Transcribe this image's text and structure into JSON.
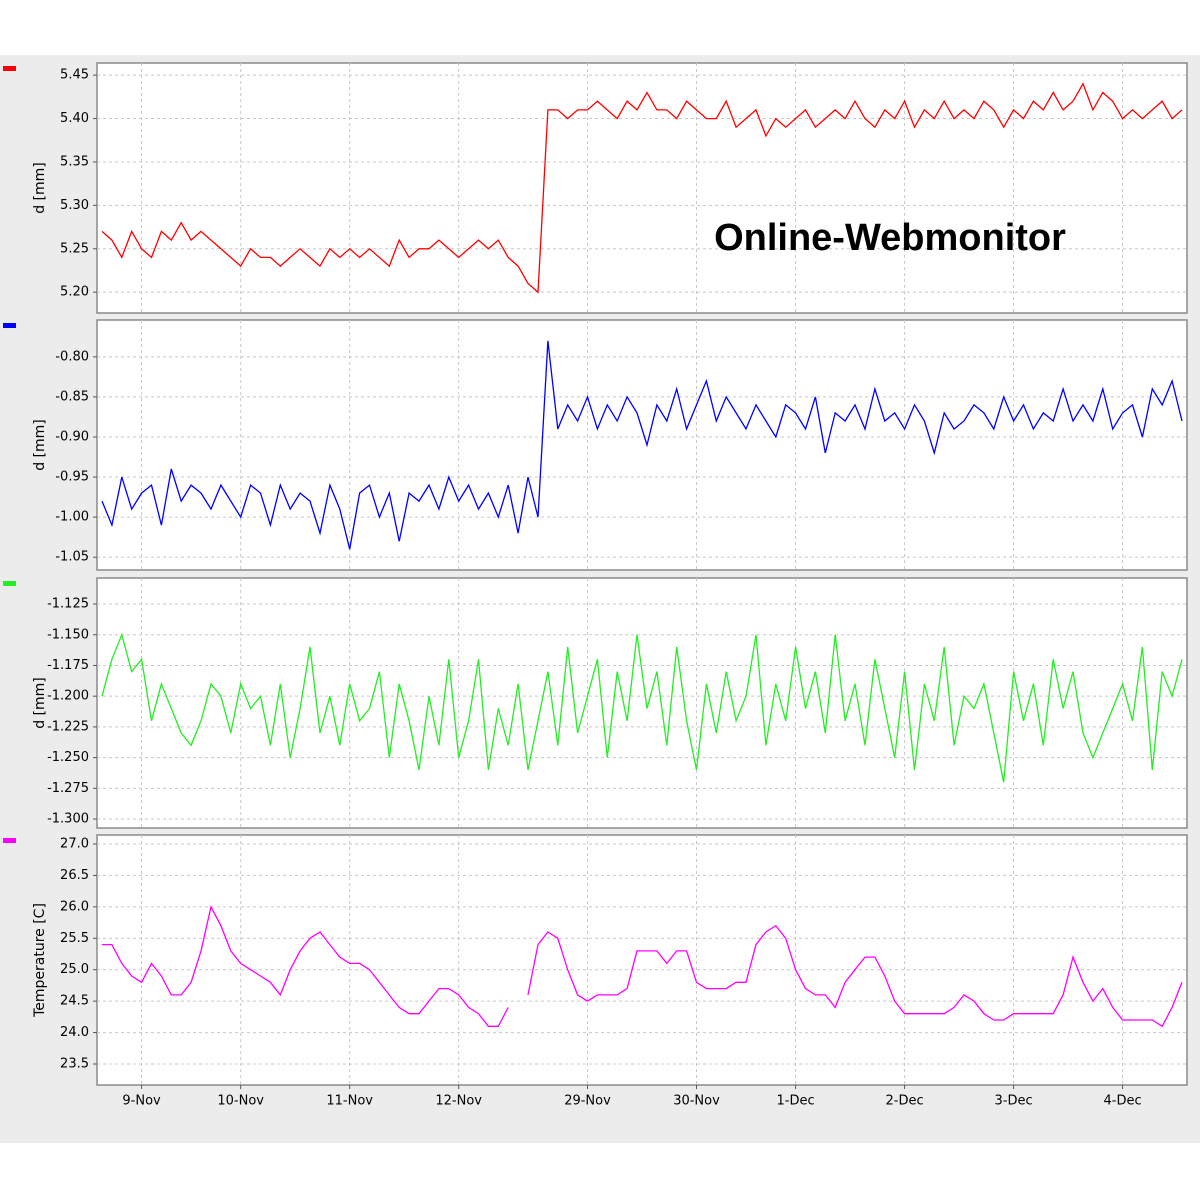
{
  "chart_data": [
    {
      "type": "line",
      "ylabel": "d [mm]",
      "annotation": "Online-Webmonitor",
      "color": "#ff0000",
      "grid": true,
      "ylim": [
        5.176,
        5.464
      ],
      "yticks": [
        {
          "value": 5.2,
          "label": "5.20"
        },
        5.25,
        {
          "value": 5.3,
          "label": "5.30"
        },
        5.35,
        {
          "value": 5.4,
          "label": "5.40"
        },
        5.45
      ],
      "values": [
        5.27,
        5.26,
        5.24,
        5.27,
        5.25,
        5.24,
        5.27,
        5.26,
        5.28,
        5.26,
        5.27,
        5.26,
        5.25,
        5.24,
        5.23,
        5.25,
        5.24,
        5.24,
        5.23,
        5.24,
        5.25,
        5.24,
        5.23,
        5.25,
        5.24,
        5.25,
        5.24,
        5.25,
        5.24,
        5.23,
        5.26,
        5.24,
        5.25,
        5.25,
        5.26,
        5.25,
        5.24,
        5.25,
        5.26,
        5.25,
        5.26,
        5.24,
        5.23,
        5.21,
        5.2,
        5.41,
        5.41,
        5.4,
        5.41,
        5.41,
        5.42,
        5.41,
        5.4,
        5.42,
        5.41,
        5.43,
        5.41,
        5.41,
        5.4,
        5.42,
        5.41,
        5.4,
        5.4,
        5.42,
        5.39,
        5.4,
        5.41,
        5.38,
        5.4,
        5.39,
        5.4,
        5.41,
        5.39,
        5.4,
        5.41,
        5.4,
        5.42,
        5.4,
        5.39,
        5.41,
        5.4,
        5.42,
        5.39,
        5.41,
        5.4,
        5.42,
        5.4,
        5.41,
        5.4,
        5.42,
        5.41,
        5.39,
        5.41,
        5.4,
        5.42,
        5.41,
        5.43,
        5.41,
        5.42,
        5.44,
        5.41,
        5.43,
        5.42,
        5.4,
        5.41,
        5.4,
        5.41,
        5.42,
        5.4,
        5.41
      ]
    },
    {
      "type": "line",
      "ylabel": "d [mm]",
      "color": "#0000ff",
      "grid": true,
      "ylim": [
        -1.066,
        -0.754
      ],
      "yticks": [
        {
          "value": -0.8,
          "label": "-0.80"
        },
        -0.85,
        {
          "value": -0.9,
          "label": "-0.90"
        },
        -0.95,
        {
          "value": -1,
          "label": "-1.00"
        },
        -1.05
      ],
      "values": [
        -0.98,
        -1.01,
        -0.95,
        -0.99,
        -0.97,
        -0.96,
        -1.01,
        -0.94,
        -0.98,
        -0.96,
        -0.97,
        -0.99,
        -0.96,
        -0.98,
        -1.0,
        -0.96,
        -0.97,
        -1.01,
        -0.96,
        -0.99,
        -0.97,
        -0.98,
        -1.02,
        -0.96,
        -0.99,
        -1.04,
        -0.97,
        -0.96,
        -1.0,
        -0.97,
        -1.03,
        -0.97,
        -0.98,
        -0.96,
        -0.99,
        -0.95,
        -0.98,
        -0.96,
        -0.99,
        -0.97,
        -1.0,
        -0.96,
        -1.02,
        -0.95,
        -1.0,
        -0.78,
        -0.89,
        -0.86,
        -0.88,
        -0.85,
        -0.89,
        -0.86,
        -0.88,
        -0.85,
        -0.87,
        -0.91,
        -0.86,
        -0.88,
        -0.84,
        -0.89,
        -0.86,
        -0.83,
        -0.88,
        -0.85,
        -0.87,
        -0.89,
        -0.86,
        -0.88,
        -0.9,
        -0.86,
        -0.87,
        -0.89,
        -0.85,
        -0.92,
        -0.87,
        -0.88,
        -0.86,
        -0.89,
        -0.84,
        -0.88,
        -0.87,
        -0.89,
        -0.86,
        -0.88,
        -0.92,
        -0.87,
        -0.89,
        -0.88,
        -0.86,
        -0.87,
        -0.89,
        -0.85,
        -0.88,
        -0.86,
        -0.89,
        -0.87,
        -0.88,
        -0.84,
        -0.88,
        -0.86,
        -0.88,
        -0.84,
        -0.89,
        -0.87,
        -0.86,
        -0.9,
        -0.84,
        -0.86,
        -0.83,
        -0.88
      ]
    },
    {
      "type": "line",
      "ylabel": "d [mm]",
      "color": "#22ee22",
      "grid": true,
      "ylim": [
        -1.3073,
        -1.1038
      ],
      "yticks": [
        -1.125,
        {
          "value": -1.15,
          "label": "-1.150"
        },
        -1.175,
        {
          "value": -1.2,
          "label": "-1.200"
        },
        -1.225,
        {
          "value": -1.25,
          "label": "-1.250"
        },
        -1.275,
        {
          "value": -1.3,
          "label": "-1.300"
        }
      ],
      "values": [
        -1.2,
        -1.17,
        -1.15,
        -1.18,
        -1.17,
        -1.22,
        -1.19,
        -1.21,
        -1.23,
        -1.24,
        -1.22,
        -1.19,
        -1.2,
        -1.23,
        -1.19,
        -1.21,
        -1.2,
        -1.24,
        -1.19,
        -1.25,
        -1.21,
        -1.16,
        -1.23,
        -1.2,
        -1.24,
        -1.19,
        -1.22,
        -1.21,
        -1.18,
        -1.25,
        -1.19,
        -1.22,
        -1.26,
        -1.2,
        -1.24,
        -1.17,
        -1.25,
        -1.22,
        -1.17,
        -1.26,
        -1.21,
        -1.24,
        -1.19,
        -1.26,
        -1.22,
        -1.18,
        -1.24,
        -1.16,
        -1.23,
        -1.2,
        -1.17,
        -1.25,
        -1.18,
        -1.22,
        -1.15,
        -1.21,
        -1.18,
        -1.24,
        -1.16,
        -1.22,
        -1.26,
        -1.19,
        -1.23,
        -1.18,
        -1.22,
        -1.2,
        -1.15,
        -1.24,
        -1.19,
        -1.22,
        -1.16,
        -1.21,
        -1.18,
        -1.23,
        -1.15,
        -1.22,
        -1.19,
        -1.24,
        -1.17,
        -1.21,
        -1.25,
        -1.18,
        -1.26,
        -1.19,
        -1.22,
        -1.16,
        -1.24,
        -1.2,
        -1.21,
        -1.19,
        -1.23,
        -1.27,
        -1.18,
        -1.22,
        -1.19,
        -1.24,
        -1.17,
        -1.21,
        -1.18,
        -1.23,
        -1.25,
        -1.23,
        -1.21,
        -1.19,
        -1.22,
        -1.16,
        -1.26,
        -1.18,
        -1.2,
        -1.17
      ]
    },
    {
      "type": "line",
      "ylabel": "Temperature [C]",
      "color": "#ff00ff",
      "grid": true,
      "ylim": [
        23.166,
        27.143
      ],
      "yticks": [
        23.5,
        {
          "value": 24,
          "label": "24.0"
        },
        24.5,
        {
          "value": 25,
          "label": "25.0"
        },
        25.5,
        {
          "value": 26,
          "label": "26.0"
        },
        26.5,
        {
          "value": 27,
          "label": "27.0"
        }
      ],
      "categories": [
        null,
        null,
        null,
        null,
        "9-Nov",
        null,
        null,
        null,
        null,
        null,
        null,
        null,
        null,
        null,
        "10-Nov",
        null,
        null,
        null,
        null,
        null,
        null,
        null,
        null,
        null,
        null,
        "11-Nov",
        null,
        null,
        null,
        null,
        null,
        null,
        null,
        null,
        null,
        null,
        "12-Nov",
        null,
        null,
        null,
        null,
        null,
        null,
        null,
        null,
        null,
        null,
        null,
        null,
        "29-Nov",
        null,
        null,
        null,
        null,
        null,
        null,
        null,
        null,
        null,
        null,
        "30-Nov",
        null,
        null,
        null,
        null,
        null,
        null,
        null,
        null,
        null,
        "1-Dec",
        null,
        null,
        null,
        null,
        null,
        null,
        null,
        null,
        null,
        null,
        "2-Dec",
        null,
        null,
        null,
        null,
        null,
        null,
        null,
        null,
        null,
        null,
        "3-Dec",
        null,
        null,
        null,
        null,
        null,
        null,
        null,
        null,
        null,
        null,
        "4-Dec",
        null,
        null,
        null,
        null,
        null,
        null
      ],
      "values": [
        25.4,
        25.4,
        25.1,
        24.9,
        24.8,
        25.1,
        24.9,
        24.6,
        24.6,
        24.8,
        25.3,
        26.0,
        25.7,
        25.3,
        25.1,
        25.0,
        24.9,
        24.8,
        24.6,
        25.0,
        25.3,
        25.5,
        25.6,
        25.4,
        25.2,
        25.1,
        25.1,
        25.0,
        24.8,
        24.6,
        24.4,
        24.3,
        24.3,
        24.5,
        24.7,
        24.7,
        24.6,
        24.4,
        24.3,
        24.1,
        24.1,
        24.4,
        null,
        24.6,
        25.4,
        25.6,
        25.5,
        25.0,
        24.6,
        24.5,
        24.6,
        24.6,
        24.6,
        24.7,
        25.3,
        25.3,
        25.3,
        25.1,
        25.3,
        25.3,
        24.8,
        24.7,
        24.7,
        24.7,
        24.8,
        24.8,
        25.4,
        25.6,
        25.7,
        25.5,
        25.0,
        24.7,
        24.6,
        24.6,
        24.4,
        24.8,
        25.0,
        25.2,
        25.2,
        24.9,
        24.5,
        24.3,
        24.3,
        24.3,
        24.3,
        24.3,
        24.4,
        24.6,
        24.5,
        24.3,
        24.2,
        24.2,
        24.3,
        24.3,
        24.3,
        24.3,
        24.3,
        24.6,
        25.2,
        24.8,
        24.5,
        24.7,
        24.4,
        24.2,
        24.2,
        24.2,
        24.2,
        24.1,
        24.4,
        24.8
      ]
    }
  ]
}
